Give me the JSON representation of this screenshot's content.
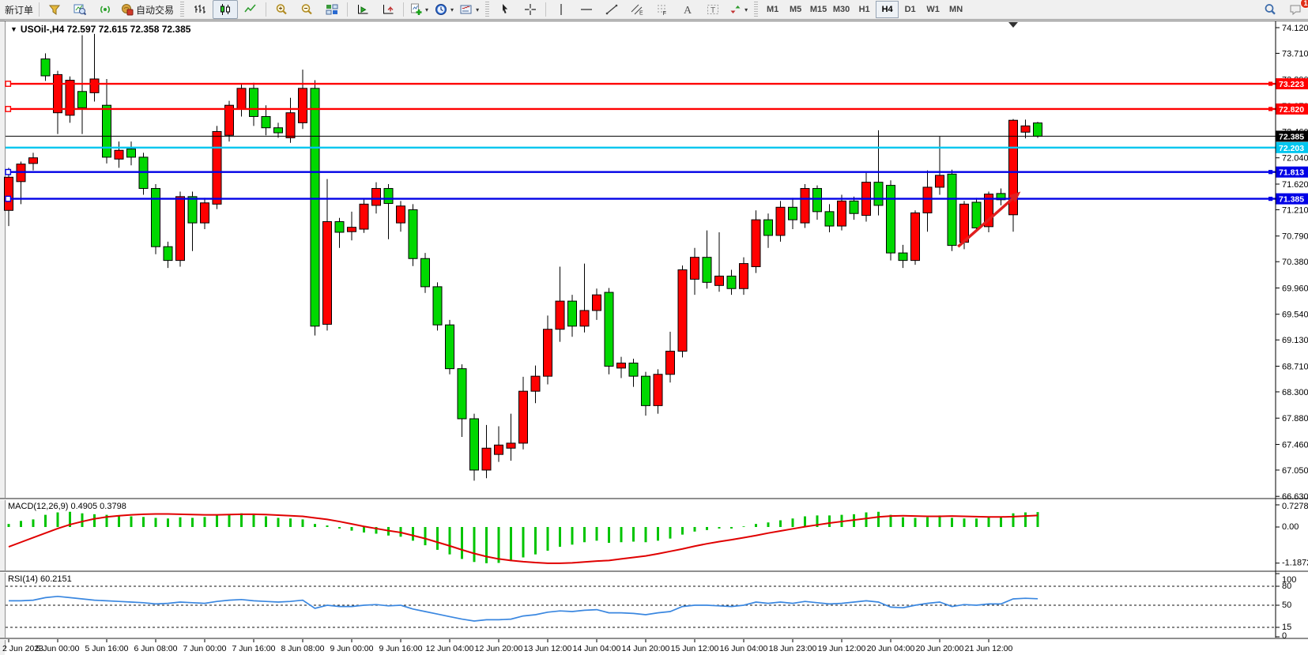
{
  "toolbar": {
    "items": [
      {
        "type": "button",
        "name": "new-order-button",
        "label": "新订单"
      },
      {
        "type": "sep"
      },
      {
        "type": "icon",
        "name": "market-watch-button",
        "icon": "funnel"
      },
      {
        "type": "icon",
        "name": "data-window-button",
        "icon": "chart-search"
      },
      {
        "type": "icon",
        "name": "signals-button",
        "icon": "signal"
      },
      {
        "type": "button",
        "name": "auto-trading-button",
        "icon": "autotrade",
        "label": "自动交易"
      },
      {
        "type": "handle"
      },
      {
        "type": "icon",
        "name": "bar-chart-button",
        "icon": "bars"
      },
      {
        "type": "icon",
        "name": "candlestick-chart-button",
        "icon": "candles",
        "active": true
      },
      {
        "type": "icon",
        "name": "line-chart-button",
        "icon": "linechart"
      },
      {
        "type": "sep"
      },
      {
        "type": "icon",
        "name": "zoom-in-button",
        "icon": "zoom-in"
      },
      {
        "type": "icon",
        "name": "zoom-out-button",
        "icon": "zoom-out"
      },
      {
        "type": "icon",
        "name": "tile-windows-button",
        "icon": "tiles"
      },
      {
        "type": "sep"
      },
      {
        "type": "icon",
        "name": "auto-scroll-button",
        "icon": "auto-scroll"
      },
      {
        "type": "icon",
        "name": "chart-shift-button",
        "icon": "chart-shift"
      },
      {
        "type": "sep"
      },
      {
        "type": "icon",
        "name": "indicators-button",
        "icon": "indicator-add",
        "caret": true
      },
      {
        "type": "icon",
        "name": "periods-button",
        "icon": "clock",
        "caret": true
      },
      {
        "type": "icon",
        "name": "templates-button",
        "icon": "template",
        "caret": true
      },
      {
        "type": "handle"
      },
      {
        "type": "icon",
        "name": "cursor-button",
        "icon": "cursor"
      },
      {
        "type": "icon",
        "name": "crosshair-button",
        "icon": "crosshair"
      },
      {
        "type": "sep"
      },
      {
        "type": "icon",
        "name": "vertical-line-button",
        "icon": "vline"
      },
      {
        "type": "icon",
        "name": "horizontal-line-button",
        "icon": "hline"
      },
      {
        "type": "icon",
        "name": "trendline-button",
        "icon": "tline"
      },
      {
        "type": "icon",
        "name": "equidistant-channel-button",
        "icon": "channel"
      },
      {
        "type": "icon",
        "name": "fibonacci-button",
        "icon": "fibo"
      },
      {
        "type": "icon",
        "name": "text-button",
        "icon": "textA"
      },
      {
        "type": "icon",
        "name": "text-label-button",
        "icon": "textT"
      },
      {
        "type": "icon",
        "name": "arrows-button",
        "icon": "shapes",
        "caret": true
      },
      {
        "type": "handle"
      },
      {
        "type": "tfgroup"
      },
      {
        "type": "spacer"
      },
      {
        "type": "icon",
        "name": "search-button",
        "icon": "search"
      },
      {
        "type": "icon",
        "name": "notifications-button",
        "icon": "chat",
        "badge": "1"
      }
    ],
    "timeframes": [
      "M1",
      "M5",
      "M15",
      "M30",
      "H1",
      "H4",
      "D1",
      "W1",
      "MN"
    ],
    "active_timeframe": "H4",
    "notification_count": "1"
  },
  "chart": {
    "marker": "▼",
    "title_line": "USOil-,H4  72.597 72.615 72.358 72.385",
    "macd_label": "MACD(12,26,9) 0.4905 0.3798",
    "rsi_label": "RSI(14) 60.2151"
  },
  "chart_data": {
    "type": "candlestick",
    "symbol": "USOil-",
    "timeframe": "H4",
    "current_ohlc": {
      "open": 72.597,
      "high": 72.615,
      "low": 72.358,
      "close": 72.385
    },
    "up_color": "#ff0000",
    "down_color": "#00d800",
    "y_axis": [
      "74.120",
      "73.710",
      "73.290",
      "72.870",
      "72.460",
      "72.040",
      "71.620",
      "71.210",
      "70.790",
      "70.380",
      "69.960",
      "69.540",
      "69.130",
      "68.710",
      "68.300",
      "67.880",
      "67.460",
      "67.050",
      "66.630"
    ],
    "x_labels": [
      "2 Jun 2023",
      "5 Jun 00:00",
      "5 Jun 16:00",
      "6 Jun 08:00",
      "7 Jun 00:00",
      "7 Jun 16:00",
      "8 Jun 08:00",
      "9 Jun 00:00",
      "9 Jun 16:00",
      "12 Jun 04:00",
      "12 Jun 20:00",
      "13 Jun 12:00",
      "14 Jun 04:00",
      "14 Jun 20:00",
      "15 Jun 12:00",
      "16 Jun 04:00",
      "18 Jun 23:00",
      "19 Jun 12:00",
      "20 Jun 04:00",
      "20 Jun 20:00",
      "21 Jun 12:00"
    ],
    "x_label_step": 4,
    "levels": [
      {
        "price": 73.223,
        "color": "#ff0000",
        "width": 2.4,
        "marker": true
      },
      {
        "price": 72.82,
        "color": "#ff0000",
        "width": 2.4,
        "marker": true
      },
      {
        "price": 72.203,
        "color": "#00c6ef",
        "width": 2.4,
        "marker": false
      },
      {
        "price": 71.813,
        "color": "#0000e6",
        "width": 2.4,
        "marker": true
      },
      {
        "price": 71.385,
        "color": "#0000e6",
        "width": 2.4,
        "marker": true
      }
    ],
    "current_price": {
      "value": 72.385,
      "color": "#000000"
    },
    "candles": [
      [
        71.2,
        71.88,
        70.95,
        71.73
      ],
      [
        71.66,
        71.98,
        71.3,
        71.94
      ],
      [
        71.95,
        72.12,
        71.84,
        72.04
      ],
      [
        73.62,
        73.71,
        73.27,
        73.35
      ],
      [
        72.76,
        73.43,
        72.42,
        73.37
      ],
      [
        72.72,
        73.34,
        72.6,
        73.28
      ],
      [
        73.1,
        74.0,
        72.42,
        72.84
      ],
      [
        73.08,
        74.02,
        72.94,
        73.3
      ],
      [
        72.88,
        73.3,
        71.95,
        72.05
      ],
      [
        72.02,
        72.3,
        71.88,
        72.16
      ],
      [
        72.18,
        72.3,
        71.92,
        72.05
      ],
      [
        72.05,
        72.12,
        71.45,
        71.55
      ],
      [
        71.55,
        71.62,
        70.5,
        70.62
      ],
      [
        70.62,
        70.7,
        70.28,
        70.4
      ],
      [
        70.4,
        71.5,
        70.3,
        71.42
      ],
      [
        71.42,
        71.5,
        70.55,
        71.0
      ],
      [
        71.0,
        71.4,
        70.9,
        71.32
      ],
      [
        71.3,
        72.55,
        71.22,
        72.46
      ],
      [
        72.4,
        72.95,
        72.3,
        72.88
      ],
      [
        72.82,
        73.22,
        72.7,
        73.15
      ],
      [
        73.15,
        73.24,
        72.55,
        72.7
      ],
      [
        72.7,
        72.88,
        72.4,
        72.52
      ],
      [
        72.52,
        72.6,
        72.36,
        72.44
      ],
      [
        72.36,
        73.0,
        72.28,
        72.76
      ],
      [
        72.6,
        73.45,
        72.5,
        73.15
      ],
      [
        73.15,
        73.28,
        69.2,
        69.35
      ],
      [
        69.38,
        71.7,
        69.28,
        71.02
      ],
      [
        71.02,
        71.08,
        70.6,
        70.85
      ],
      [
        70.86,
        71.18,
        70.72,
        70.93
      ],
      [
        70.9,
        71.38,
        70.84,
        71.3
      ],
      [
        71.28,
        71.65,
        71.15,
        71.55
      ],
      [
        71.55,
        71.62,
        70.74,
        71.31
      ],
      [
        71.0,
        71.35,
        70.86,
        71.27
      ],
      [
        71.21,
        71.3,
        70.31,
        70.43
      ],
      [
        70.43,
        70.52,
        69.88,
        69.98
      ],
      [
        69.98,
        70.05,
        69.28,
        69.37
      ],
      [
        69.37,
        69.45,
        68.58,
        68.67
      ],
      [
        68.67,
        68.74,
        67.58,
        67.87
      ],
      [
        67.87,
        67.95,
        66.88,
        67.05
      ],
      [
        67.05,
        67.77,
        66.92,
        67.4
      ],
      [
        67.3,
        67.75,
        67.18,
        67.45
      ],
      [
        67.4,
        67.95,
        67.2,
        67.48
      ],
      [
        67.48,
        68.54,
        67.38,
        68.31
      ],
      [
        68.31,
        68.72,
        68.12,
        68.55
      ],
      [
        68.55,
        69.52,
        68.42,
        69.3
      ],
      [
        69.3,
        70.3,
        69.1,
        69.75
      ],
      [
        69.75,
        69.85,
        69.18,
        69.35
      ],
      [
        69.35,
        70.35,
        69.25,
        69.6
      ],
      [
        69.6,
        69.95,
        69.45,
        69.85
      ],
      [
        69.89,
        69.96,
        68.58,
        68.71
      ],
      [
        68.68,
        68.86,
        68.52,
        68.76
      ],
      [
        68.76,
        68.83,
        68.38,
        68.55
      ],
      [
        68.55,
        68.62,
        67.92,
        68.08
      ],
      [
        68.08,
        68.66,
        67.95,
        68.58
      ],
      [
        68.58,
        69.26,
        68.45,
        68.95
      ],
      [
        68.95,
        70.32,
        68.85,
        70.25
      ],
      [
        70.1,
        70.6,
        69.85,
        70.45
      ],
      [
        70.45,
        70.88,
        69.95,
        70.05
      ],
      [
        70.0,
        70.85,
        69.9,
        70.15
      ],
      [
        70.15,
        70.25,
        69.85,
        69.95
      ],
      [
        69.95,
        70.45,
        69.85,
        70.35
      ],
      [
        70.3,
        71.2,
        70.2,
        71.05
      ],
      [
        71.05,
        71.15,
        70.6,
        70.8
      ],
      [
        70.8,
        71.35,
        70.7,
        71.25
      ],
      [
        71.25,
        71.4,
        70.9,
        71.05
      ],
      [
        71.0,
        71.62,
        70.92,
        71.55
      ],
      [
        71.55,
        71.6,
        71.05,
        71.18
      ],
      [
        71.18,
        71.3,
        70.85,
        70.95
      ],
      [
        70.95,
        71.45,
        70.88,
        71.35
      ],
      [
        71.35,
        71.42,
        71.05,
        71.15
      ],
      [
        71.12,
        71.8,
        71.02,
        71.65
      ],
      [
        71.65,
        72.48,
        71.12,
        71.28
      ],
      [
        71.6,
        71.68,
        70.4,
        70.52
      ],
      [
        70.52,
        70.65,
        70.28,
        70.4
      ],
      [
        70.4,
        71.2,
        70.33,
        71.16
      ],
      [
        71.16,
        71.84,
        70.86,
        71.57
      ],
      [
        71.57,
        72.38,
        71.45,
        71.76
      ],
      [
        71.78,
        71.85,
        70.55,
        70.64
      ],
      [
        70.69,
        71.35,
        70.58,
        71.3
      ],
      [
        71.33,
        71.4,
        70.88,
        70.92
      ],
      [
        70.94,
        71.5,
        70.85,
        71.46
      ],
      [
        71.47,
        71.55,
        71.28,
        71.37
      ],
      [
        71.13,
        72.66,
        70.86,
        72.64
      ],
      [
        72.45,
        72.65,
        72.35,
        72.55
      ],
      [
        72.597,
        72.615,
        72.358,
        72.385
      ]
    ],
    "macd": {
      "params": "12,26,9",
      "value": 0.4905,
      "signal_value": 0.3798,
      "axis": [
        "0.7278",
        "0.00",
        "-1.1872"
      ],
      "histogram": [
        0.1,
        0.2,
        0.25,
        0.4,
        0.48,
        0.5,
        0.45,
        0.42,
        0.4,
        0.38,
        0.35,
        0.33,
        0.3,
        0.28,
        0.32,
        0.3,
        0.33,
        0.38,
        0.42,
        0.45,
        0.4,
        0.35,
        0.3,
        0.28,
        0.25,
        0.1,
        0.05,
        -0.05,
        -0.12,
        -0.18,
        -0.22,
        -0.28,
        -0.32,
        -0.45,
        -0.6,
        -0.75,
        -0.9,
        -1.05,
        -1.15,
        -1.19,
        -1.18,
        -1.12,
        -1.0,
        -0.9,
        -0.78,
        -0.65,
        -0.58,
        -0.5,
        -0.45,
        -0.52,
        -0.5,
        -0.48,
        -0.5,
        -0.45,
        -0.38,
        -0.25,
        -0.15,
        -0.1,
        -0.05,
        -0.05,
        0.02,
        0.1,
        0.15,
        0.22,
        0.28,
        0.35,
        0.38,
        0.38,
        0.4,
        0.42,
        0.48,
        0.5,
        0.4,
        0.32,
        0.3,
        0.32,
        0.38,
        0.3,
        0.28,
        0.28,
        0.32,
        0.35,
        0.45,
        0.48,
        0.4905
      ],
      "signal": [
        -0.65,
        -0.5,
        -0.35,
        -0.2,
        -0.05,
        0.08,
        0.18,
        0.27,
        0.33,
        0.37,
        0.4,
        0.42,
        0.43,
        0.43,
        0.42,
        0.41,
        0.4,
        0.4,
        0.41,
        0.42,
        0.42,
        0.41,
        0.39,
        0.37,
        0.35,
        0.3,
        0.25,
        0.18,
        0.1,
        0.02,
        -0.05,
        -0.12,
        -0.18,
        -0.28,
        -0.38,
        -0.5,
        -0.62,
        -0.75,
        -0.87,
        -0.97,
        -1.05,
        -1.1,
        -1.14,
        -1.17,
        -1.19,
        -1.19,
        -1.18,
        -1.15,
        -1.12,
        -1.1,
        -1.05,
        -1.0,
        -0.95,
        -0.88,
        -0.8,
        -0.72,
        -0.63,
        -0.55,
        -0.48,
        -0.42,
        -0.35,
        -0.28,
        -0.2,
        -0.13,
        -0.06,
        0.01,
        0.07,
        0.13,
        0.18,
        0.23,
        0.28,
        0.33,
        0.36,
        0.37,
        0.36,
        0.35,
        0.35,
        0.36,
        0.35,
        0.34,
        0.33,
        0.33,
        0.34,
        0.36,
        0.3798
      ],
      "histogram_color": "#00c400",
      "signal_color": "#e00000"
    },
    "rsi": {
      "period": 14,
      "value": 60.2151,
      "axis": [
        "100",
        "80",
        "50",
        "15",
        "0"
      ],
      "levels": [
        80,
        50,
        15
      ],
      "line_color": "#3a87e0",
      "values": [
        57,
        57,
        58,
        62,
        64,
        62,
        60,
        58,
        57,
        56,
        55,
        54,
        52,
        53,
        55,
        54,
        53,
        56,
        58,
        59,
        57,
        56,
        55,
        56,
        58,
        45,
        50,
        48,
        48,
        50,
        51,
        49,
        50,
        44,
        40,
        36,
        32,
        28,
        25,
        27,
        27,
        28,
        33,
        35,
        39,
        41,
        40,
        42,
        43,
        38,
        38,
        37,
        35,
        38,
        40,
        48,
        50,
        50,
        49,
        48,
        50,
        55,
        53,
        55,
        53,
        56,
        54,
        52,
        53,
        55,
        57,
        55,
        47,
        46,
        50,
        53,
        55,
        48,
        51,
        50,
        52,
        52,
        60,
        61,
        60.2151
      ]
    },
    "annotations": {
      "arrow": {
        "from_index": 77.5,
        "from_price": 70.62,
        "to_index": 82.6,
        "to_price": 71.5,
        "color": "#e01f1f"
      },
      "shift_marker_index": 82
    }
  }
}
